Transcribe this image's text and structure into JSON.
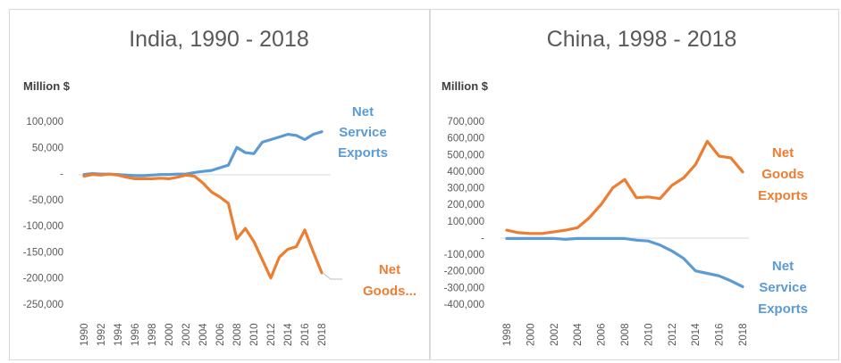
{
  "colors": {
    "service": "#5b9bd5",
    "goods": "#ed7d31",
    "text": "#595959"
  },
  "chart_data": [
    {
      "type": "line",
      "title": "India, 1990 - 2018",
      "ylabel": "Million $",
      "ylim": [
        -250000,
        100000
      ],
      "yticks": [
        100000,
        50000,
        0,
        -50000,
        -100000,
        -150000,
        -200000,
        -250000
      ],
      "ytick_labels": [
        "100,000",
        "50,000",
        "-",
        "-50,000",
        "-100,000",
        "-150,000",
        "-200,000",
        "-250,000"
      ],
      "x": [
        1990,
        1991,
        1992,
        1993,
        1994,
        1995,
        1996,
        1997,
        1998,
        1999,
        2000,
        2001,
        2002,
        2003,
        2004,
        2005,
        2006,
        2007,
        2008,
        2009,
        2010,
        2011,
        2012,
        2013,
        2014,
        2015,
        2016,
        2017,
        2018
      ],
      "xtick_labels": [
        "1990",
        "1992",
        "1994",
        "1996",
        "1998",
        "2000",
        "2002",
        "2004",
        "2006",
        "2008",
        "2010",
        "2012",
        "2014",
        "2016",
        "2018"
      ],
      "series": [
        {
          "name": "Net Service Exports",
          "label_lines": [
            "Net",
            "Service",
            "Exports"
          ],
          "color_key": "service",
          "values": [
            -2000,
            0,
            -1000,
            -1000,
            -2000,
            -3000,
            -4000,
            -4000,
            -3000,
            -2000,
            -2000,
            -1000,
            -1000,
            2000,
            4000,
            6000,
            11000,
            16000,
            50000,
            40000,
            38000,
            60000,
            65000,
            70000,
            75000,
            73000,
            65000,
            75000,
            80000
          ]
        },
        {
          "name": "Net Goods Exports",
          "label_lines": [
            "Net",
            "Goods..."
          ],
          "color_key": "goods",
          "values": [
            -5000,
            -2000,
            -3000,
            -1000,
            -3000,
            -7000,
            -10000,
            -10000,
            -10000,
            -9000,
            -10000,
            -7000,
            -3000,
            -5000,
            -18000,
            -35000,
            -45000,
            -57000,
            -125000,
            -105000,
            -130000,
            -165000,
            -200000,
            -160000,
            -145000,
            -140000,
            -108000,
            -150000,
            -190000
          ]
        }
      ]
    },
    {
      "type": "line",
      "title": "China, 1998 - 2018",
      "ylabel": "Million $",
      "ylim": [
        -400000,
        700000
      ],
      "yticks": [
        700000,
        600000,
        500000,
        400000,
        300000,
        200000,
        100000,
        0,
        -100000,
        -200000,
        -300000,
        -400000
      ],
      "ytick_labels": [
        "700,000",
        "600,000",
        "500,000",
        "400,000",
        "300,000",
        "200,000",
        "100,000",
        "-",
        "-100,000",
        "-200,000",
        "-300,000",
        "-400,000"
      ],
      "x": [
        1998,
        1999,
        2000,
        2001,
        2002,
        2003,
        2004,
        2005,
        2006,
        2007,
        2008,
        2009,
        2010,
        2011,
        2012,
        2013,
        2014,
        2015,
        2016,
        2017,
        2018
      ],
      "xtick_labels": [
        "1998",
        "2000",
        "2002",
        "2004",
        "2006",
        "2008",
        "2010",
        "2012",
        "2014",
        "2016",
        "2018"
      ],
      "series": [
        {
          "name": "Net Goods Exports",
          "label_lines": [
            "Net",
            "Goods",
            "Exports"
          ],
          "color_key": "goods",
          "values": [
            45000,
            30000,
            25000,
            25000,
            35000,
            45000,
            60000,
            120000,
            200000,
            300000,
            350000,
            240000,
            245000,
            235000,
            315000,
            360000,
            440000,
            580000,
            490000,
            480000,
            395000
          ]
        },
        {
          "name": "Net Service Exports",
          "label_lines": [
            "Net",
            "Service",
            "Exports"
          ],
          "color_key": "service",
          "values": [
            -5000,
            -5000,
            -5000,
            -5000,
            -5000,
            -10000,
            -5000,
            -5000,
            -5000,
            -5000,
            -5000,
            -15000,
            -20000,
            -45000,
            -80000,
            -125000,
            -200000,
            -215000,
            -230000,
            -260000,
            -295000
          ]
        }
      ]
    }
  ]
}
